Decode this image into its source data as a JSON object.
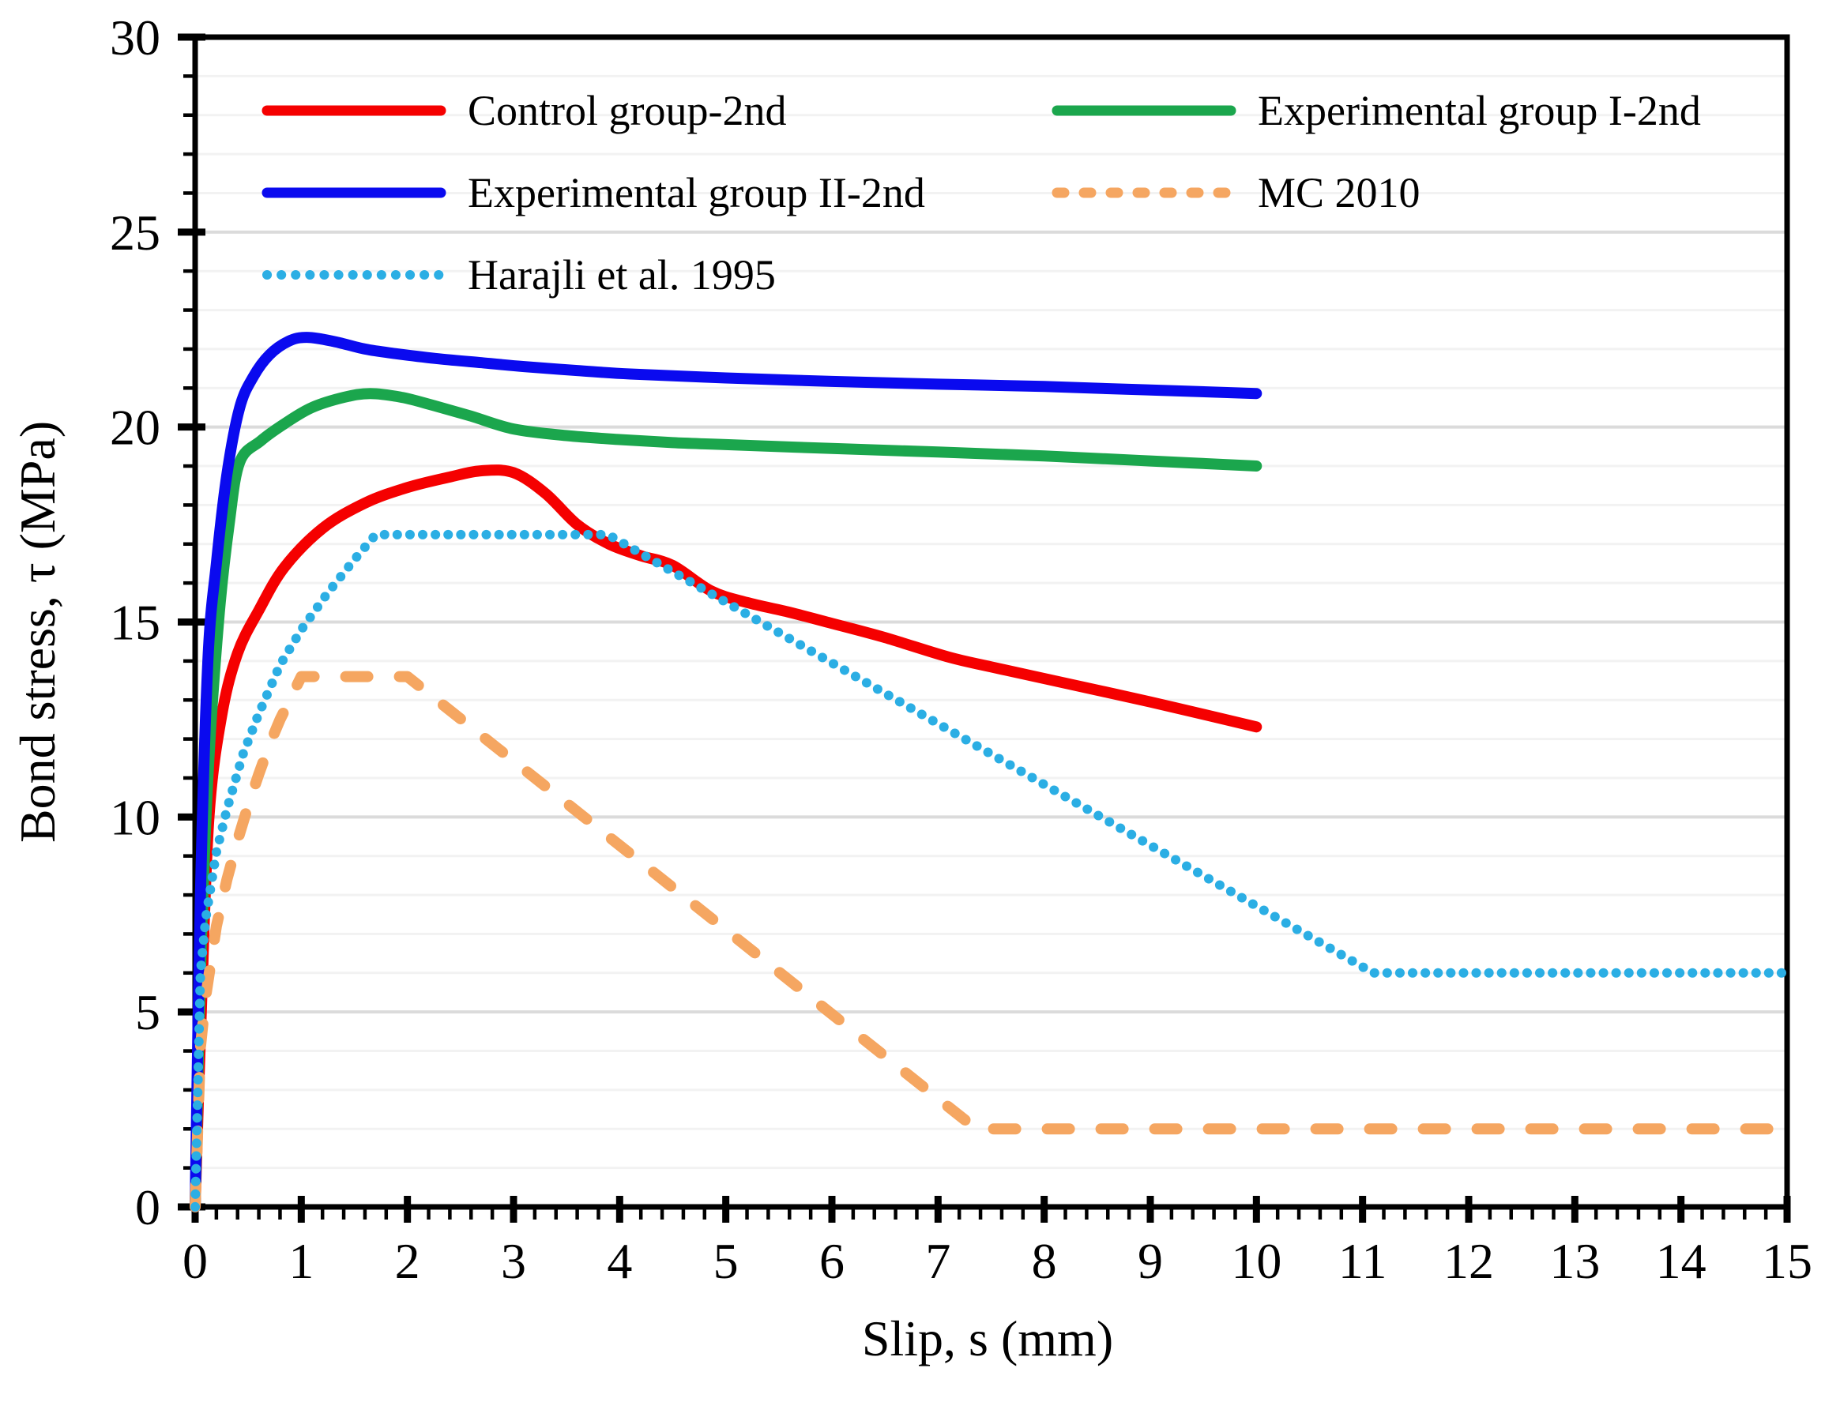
{
  "figure": {
    "background": "#ffffff",
    "axis_color": "#000000",
    "minor_grid_color": "#f2f2f2",
    "major_grid_color": "#dbdbdb"
  },
  "chart_data": {
    "type": "line",
    "title": "",
    "xlabel": "Slip, s (mm)",
    "ylabel": "Bond stress, τ (MPa)",
    "xlim": [
      0,
      15
    ],
    "ylim": [
      0,
      30
    ],
    "x_ticks": [
      "0",
      "1",
      "2",
      "3",
      "4",
      "5",
      "6",
      "7",
      "8",
      "9",
      "10",
      "11",
      "12",
      "13",
      "14",
      "15"
    ],
    "y_ticks": [
      "0",
      "5",
      "10",
      "15",
      "20",
      "25",
      "30"
    ],
    "x_major_step": 1,
    "x_minor_step": 0.2,
    "y_major_step": 5,
    "y_minor_step": 1,
    "grid": "horizontal gridlines only, minor every 1 MPa (light), major every 5 MPa (darker)",
    "legend_position": "inside top-left, two columns",
    "series": [
      {
        "name": "Control group-2nd",
        "color": "#f50000",
        "style": "solid",
        "smooth": true,
        "points": [
          [
            0,
            0
          ],
          [
            0.06,
            5.2
          ],
          [
            0.13,
            10
          ],
          [
            0.25,
            12.6
          ],
          [
            0.4,
            14.2
          ],
          [
            0.6,
            15.3
          ],
          [
            0.84,
            16.4
          ],
          [
            1.2,
            17.4
          ],
          [
            1.6,
            18.05
          ],
          [
            2.0,
            18.45
          ],
          [
            2.4,
            18.72
          ],
          [
            2.7,
            18.88
          ],
          [
            3.0,
            18.83
          ],
          [
            3.3,
            18.3
          ],
          [
            3.6,
            17.5
          ],
          [
            3.9,
            17.0
          ],
          [
            4.2,
            16.7
          ],
          [
            4.5,
            16.45
          ],
          [
            4.86,
            15.8
          ],
          [
            5.2,
            15.5
          ],
          [
            5.6,
            15.25
          ],
          [
            5.95,
            15.0
          ],
          [
            6.5,
            14.6
          ],
          [
            7.1,
            14.1
          ],
          [
            7.5,
            13.85
          ],
          [
            8,
            13.55
          ],
          [
            9,
            12.95
          ],
          [
            10,
            12.31
          ]
        ]
      },
      {
        "name": "Experimental group I-2nd",
        "color": "#1ba64d",
        "style": "solid",
        "smooth": true,
        "points": [
          [
            0,
            0
          ],
          [
            0.05,
            6
          ],
          [
            0.12,
            11
          ],
          [
            0.22,
            15
          ],
          [
            0.32,
            17.5
          ],
          [
            0.42,
            19.1
          ],
          [
            0.62,
            19.65
          ],
          [
            0.85,
            20.1
          ],
          [
            1.1,
            20.5
          ],
          [
            1.4,
            20.76
          ],
          [
            1.65,
            20.86
          ],
          [
            1.95,
            20.76
          ],
          [
            2.25,
            20.55
          ],
          [
            2.6,
            20.28
          ],
          [
            3.0,
            19.95
          ],
          [
            3.5,
            19.78
          ],
          [
            4.0,
            19.68
          ],
          [
            4.5,
            19.6
          ],
          [
            5,
            19.55
          ],
          [
            6,
            19.45
          ],
          [
            7,
            19.36
          ],
          [
            8,
            19.26
          ],
          [
            9,
            19.13
          ],
          [
            10,
            19.0
          ]
        ]
      },
      {
        "name": "Experimental group II-2nd",
        "color": "#0a0aef",
        "style": "solid",
        "smooth": true,
        "points": [
          [
            0,
            0
          ],
          [
            0.05,
            8
          ],
          [
            0.12,
            14
          ],
          [
            0.2,
            16.5
          ],
          [
            0.3,
            18.8
          ],
          [
            0.42,
            20.5
          ],
          [
            0.55,
            21.3
          ],
          [
            0.7,
            21.85
          ],
          [
            0.88,
            22.2
          ],
          [
            1.05,
            22.3
          ],
          [
            1.3,
            22.2
          ],
          [
            1.6,
            22.0
          ],
          [
            1.9,
            21.88
          ],
          [
            2.3,
            21.75
          ],
          [
            2.7,
            21.65
          ],
          [
            3.1,
            21.55
          ],
          [
            3.6,
            21.45
          ],
          [
            4.1,
            21.36
          ],
          [
            5,
            21.26
          ],
          [
            6,
            21.17
          ],
          [
            7,
            21.1
          ],
          [
            8,
            21.04
          ],
          [
            9,
            20.95
          ],
          [
            10,
            20.86
          ]
        ]
      },
      {
        "name": "MC 2010",
        "color": "#f5a661",
        "style": "dashed",
        "smooth": false,
        "points": [
          [
            0,
            0
          ],
          [
            0.05,
            4.1
          ],
          [
            0.1,
            5.4
          ],
          [
            0.2,
            7.2
          ],
          [
            0.3,
            8.4
          ],
          [
            0.4,
            9.4
          ],
          [
            0.5,
            10.3
          ],
          [
            0.6,
            11.1
          ],
          [
            0.7,
            11.85
          ],
          [
            0.8,
            12.5
          ],
          [
            0.9,
            13.05
          ],
          [
            1.0,
            13.6
          ],
          [
            2.0,
            13.6
          ],
          [
            7.36,
            2.0
          ],
          [
            15,
            2.0
          ]
        ]
      },
      {
        "name": "Harajli et al. 1995",
        "color": "#2baee4",
        "style": "dotted",
        "smooth": false,
        "points": [
          [
            0,
            0
          ],
          [
            0.05,
            6.0
          ],
          [
            0.1,
            7.4
          ],
          [
            0.2,
            9.1
          ],
          [
            0.3,
            10.2
          ],
          [
            0.45,
            11.6
          ],
          [
            0.6,
            12.65
          ],
          [
            0.8,
            13.9
          ],
          [
            1.0,
            14.8
          ],
          [
            1.25,
            15.75
          ],
          [
            1.5,
            16.6
          ],
          [
            1.7,
            17.24
          ],
          [
            3.89,
            17.24
          ],
          [
            11.1,
            6.0
          ],
          [
            15,
            6.0
          ]
        ]
      }
    ]
  }
}
